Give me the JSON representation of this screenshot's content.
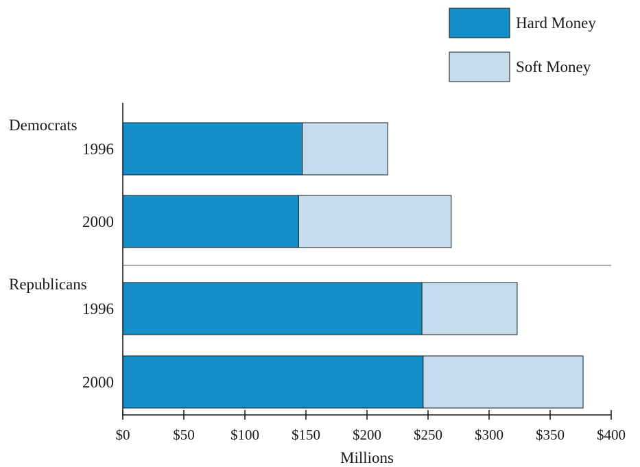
{
  "chart_data": {
    "type": "bar",
    "orientation": "horizontal",
    "stacked": true,
    "xlabel": "Millions",
    "xlim": [
      0,
      400
    ],
    "xticks": [
      0,
      50,
      100,
      150,
      200,
      250,
      300,
      350,
      400
    ],
    "xtick_labels": [
      "$0",
      "$50",
      "$100",
      "$150",
      "$200",
      "$250",
      "$300",
      "$350",
      "$400"
    ],
    "groups": [
      {
        "label": "Democrats",
        "categories": [
          "1996",
          "2000"
        ]
      },
      {
        "label": "Republicans",
        "categories": [
          "1996",
          "2000"
        ]
      }
    ],
    "categories": [
      "Democrats 1996",
      "Democrats 2000",
      "Republicans 1996",
      "Republicans 2000"
    ],
    "category_labels": [
      "1996",
      "2000",
      "1996",
      "2000"
    ],
    "series": [
      {
        "name": "Hard Money",
        "color": "#1690c8",
        "values": [
          147,
          144,
          245,
          246
        ]
      },
      {
        "name": "Soft Money",
        "color": "#c5dbee",
        "values": [
          70,
          125,
          78,
          131
        ]
      }
    ],
    "legend": "top-right",
    "grid": false
  }
}
